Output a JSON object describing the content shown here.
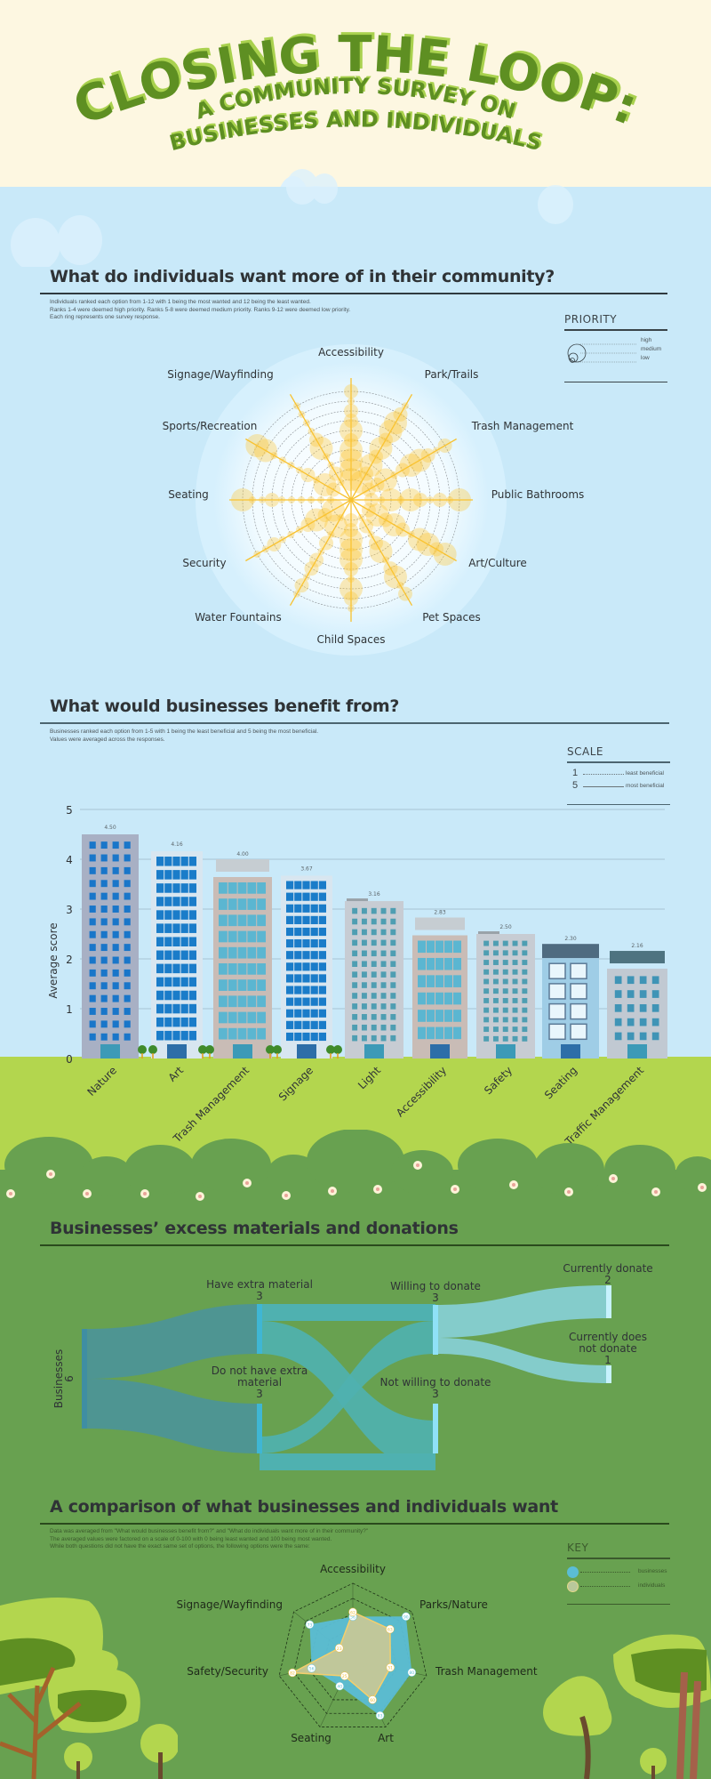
{
  "title": {
    "line1": "CLOSING THE LOOP:",
    "line2": "A COMMUNITY SURVEY ON",
    "line3": "BUSINESSES AND INDIVIDUALS"
  },
  "section1": {
    "heading": "What do individuals want more of in their community?",
    "notes": [
      "Individuals ranked each option from 1-12 with 1 being the most wanted and 12 being the least wanted.",
      "Ranks 1-4 were deemed high priority. Ranks 5-8 were deemed medium priority. Ranks 9-12 were deemed low priority.",
      "Each ring represents one survey response."
    ],
    "legend": {
      "title": "PRIORITY",
      "items": [
        "high",
        "medium",
        "low"
      ]
    }
  },
  "section2": {
    "heading": "What would businesses benefit from?",
    "notes": [
      "Businesses ranked each option from 1-5 with 1 being the least beneficial and 5 being the most beneficial.",
      "Values were averaged across the responses."
    ],
    "legend": {
      "title": "SCALE",
      "items": [
        {
          "value": "1",
          "label": "least beneficial"
        },
        {
          "value": "5",
          "label": "most beneficial"
        }
      ]
    }
  },
  "section3": {
    "heading": "Businesses’ excess materials and donations"
  },
  "section4": {
    "heading": "A comparison of what businesses and individuals want",
    "notes": [
      "Data was averaged from \"What would businesses benefit from?\" and \"What do individuals want more of in their community?\"",
      "The averaged values were factored on a scale of 0-100 with 0 being least wanted and 100 being most wanted.",
      "While both questions did not have the exact same set of options, the following options were the same:"
    ],
    "legend": {
      "title": "KEY",
      "items": [
        "businesses",
        "individuals"
      ]
    }
  },
  "colors": {
    "cream": "#fdf7e1",
    "sky": "#c9e9f9",
    "lime": "#b3d64e",
    "grass": "#68a150",
    "title_green": "#5e8f22",
    "title_shadow": "#a9d14e",
    "radial_yellow": "#fcc534",
    "sankey_dark": "#4e9592",
    "sankey_mid": "#4fb1b0",
    "sankey_light": "#84cccb",
    "business_blue": "#5bbdd5",
    "individual_tan": "#cbc995"
  },
  "chart_data": [
    {
      "type": "radial-bubble",
      "title": "What do individuals want more of in their community?",
      "categories": [
        "Accessibility",
        "Park/Trails",
        "Trash Management",
        "Public Bathrooms",
        "Art/Culture",
        "Pet Spaces",
        "Child Spaces",
        "Water Fountains",
        "Security",
        "Seating",
        "Sports/Recreation",
        "Signage/Wayfinding"
      ],
      "rings": 10,
      "note": "Each ring represents one survey response; bubble size = priority (high/medium/low)",
      "responses": [
        [
          "high",
          "high",
          "high",
          "high",
          "medium",
          "high",
          "medium",
          "medium",
          "low",
          "medium"
        ],
        [
          "high",
          "medium",
          "high",
          "medium",
          "high",
          "medium",
          "high",
          "high",
          "medium",
          "low"
        ],
        [
          "medium",
          "medium",
          "high",
          "low",
          "medium",
          "high",
          "high",
          "medium",
          "low",
          "medium"
        ],
        [
          "medium",
          "low",
          "high",
          "low",
          "high",
          "medium",
          "low",
          "medium",
          "low",
          "high"
        ],
        [
          "medium",
          "high",
          "medium",
          "high",
          "medium",
          "low",
          "high",
          "high",
          "medium",
          "high"
        ],
        [
          "low",
          "medium",
          "low",
          "medium",
          "high",
          "low",
          "medium",
          "high",
          "low",
          "medium"
        ],
        [
          "medium",
          "medium",
          "high",
          "high",
          "high",
          "medium",
          "low",
          "high",
          "medium",
          "low"
        ],
        [
          "low",
          "high",
          "low",
          "medium",
          "low",
          "medium",
          "medium",
          "low",
          "medium",
          "low"
        ],
        [
          "high",
          "medium",
          "high",
          "medium",
          "low",
          "low",
          "low",
          "medium",
          "low",
          "low"
        ],
        [
          "low",
          "low",
          "low",
          "low",
          "low",
          "low",
          "medium",
          "low",
          "low",
          "high"
        ],
        [
          "medium",
          "high",
          "low",
          "medium",
          "low",
          "low",
          "low",
          "low",
          "high",
          "high"
        ],
        [
          "low",
          "medium",
          "low",
          "low",
          "high",
          "medium",
          "low",
          "low",
          "low",
          "low"
        ]
      ]
    },
    {
      "type": "bar",
      "title": "What would businesses benefit from?",
      "categories": [
        "Nature",
        "Art",
        "Trash Management",
        "Signage",
        "Light",
        "Accessibility",
        "Safety",
        "Seating",
        "Traffic Management"
      ],
      "values": [
        4.5,
        4.16,
        4.0,
        3.67,
        3.16,
        2.83,
        2.5,
        2.3,
        2.16
      ],
      "value_labels": [
        "4.50",
        "4.16",
        "4.00",
        "3.67",
        "3.16",
        "2.83",
        "2.50",
        "2.30",
        "2.16"
      ],
      "xlabel": "",
      "ylabel": "Average score",
      "yticks": [
        "0",
        "1",
        "2",
        "3",
        "4",
        "5"
      ],
      "ylim": [
        0,
        5
      ],
      "grid": true
    },
    {
      "type": "sankey",
      "title": "Businesses’ excess materials and donations",
      "nodes": [
        {
          "id": "businesses",
          "label": "Businesses",
          "value": "6"
        },
        {
          "id": "have",
          "label": "Have extra material",
          "value": "3"
        },
        {
          "id": "nothave",
          "label": "Do not have extra material",
          "value": "3"
        },
        {
          "id": "willing",
          "label": "Willing to donate",
          "value": "3"
        },
        {
          "id": "notwilling",
          "label": "Not willing to donate",
          "value": "3"
        },
        {
          "id": "donate",
          "label": "Currently donate",
          "value": "2"
        },
        {
          "id": "notdonate",
          "label": "Currently does not donate",
          "value": "1"
        }
      ],
      "links": [
        {
          "source": "businesses",
          "target": "have",
          "value": 3
        },
        {
          "source": "businesses",
          "target": "nothave",
          "value": 3
        },
        {
          "source": "have",
          "target": "willing",
          "value": 2
        },
        {
          "source": "have",
          "target": "notwilling",
          "value": 1
        },
        {
          "source": "nothave",
          "target": "willing",
          "value": 1
        },
        {
          "source": "nothave",
          "target": "notwilling",
          "value": 2
        },
        {
          "source": "willing",
          "target": "donate",
          "value": 2
        },
        {
          "source": "willing",
          "target": "notdonate",
          "value": 1
        }
      ]
    },
    {
      "type": "radar",
      "title": "A comparison of what businesses and individuals want",
      "categories": [
        "Accessibility",
        "Parks/Nature",
        "Trash Management",
        "Art",
        "Seating",
        "Safety/Security",
        "Signage/Wayfinding"
      ],
      "range": [
        0,
        100
      ],
      "series": [
        {
          "name": "businesses",
          "values": [
            56,
            90,
            80,
            83,
            40,
            56,
            73
          ]
        },
        {
          "name": "individuals",
          "values": [
            62,
            63,
            51,
            60,
            25,
            82,
            23
          ]
        }
      ],
      "legend_position": "right"
    }
  ]
}
